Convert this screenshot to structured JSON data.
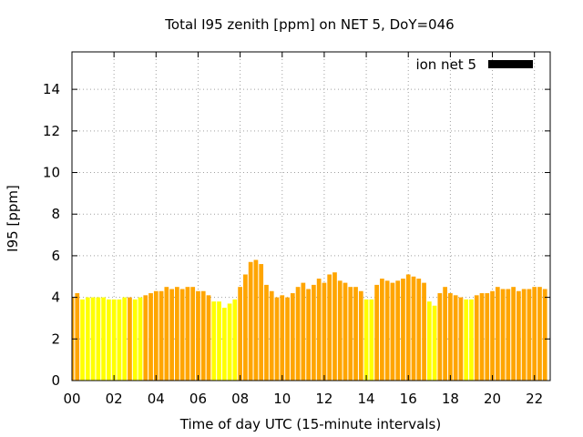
{
  "chart_data": {
    "type": "bar",
    "title": "Total I95 zenith [ppm] on NET 5, DoY=046",
    "xlabel": "Time of day UTC (15-minute intervals)",
    "ylabel": "I95 [ppm]",
    "xlim": [
      0,
      22.75
    ],
    "ylim": [
      0,
      15.8
    ],
    "x_ticks": [
      {
        "value": 0,
        "label": "00"
      },
      {
        "value": 2,
        "label": "02"
      },
      {
        "value": 4,
        "label": "04"
      },
      {
        "value": 6,
        "label": "06"
      },
      {
        "value": 8,
        "label": "08"
      },
      {
        "value": 10,
        "label": "10"
      },
      {
        "value": 12,
        "label": "12"
      },
      {
        "value": 14,
        "label": "14"
      },
      {
        "value": 16,
        "label": "16"
      },
      {
        "value": 18,
        "label": "18"
      },
      {
        "value": 20,
        "label": "20"
      },
      {
        "value": 22,
        "label": "22"
      }
    ],
    "y_ticks": [
      {
        "value": 0,
        "label": "0"
      },
      {
        "value": 2,
        "label": "2"
      },
      {
        "value": 4,
        "label": "4"
      },
      {
        "value": 6,
        "label": "6"
      },
      {
        "value": 8,
        "label": "8"
      },
      {
        "value": 10,
        "label": "10"
      },
      {
        "value": 12,
        "label": "12"
      },
      {
        "value": 14,
        "label": "14"
      }
    ],
    "grid": true,
    "legend": {
      "position": "top-right",
      "entries": [
        {
          "label": "ion net 5",
          "color": "#000000"
        }
      ]
    },
    "colors": {
      "orange": "#ffa500",
      "yellow": "#ffff00"
    },
    "bar_interval_hours": 0.25,
    "values": [
      4.0,
      4.2,
      3.9,
      4.0,
      4.0,
      4.0,
      4.0,
      3.9,
      3.9,
      3.9,
      4.0,
      4.0,
      3.9,
      4.0,
      4.1,
      4.2,
      4.3,
      4.3,
      4.5,
      4.4,
      4.5,
      4.4,
      4.5,
      4.5,
      4.3,
      4.3,
      4.1,
      3.8,
      3.8,
      3.5,
      3.7,
      3.9,
      4.5,
      5.1,
      5.7,
      5.8,
      5.6,
      4.6,
      4.3,
      4.0,
      4.1,
      4.0,
      4.2,
      4.5,
      4.7,
      4.4,
      4.6,
      4.9,
      4.7,
      5.1,
      5.2,
      4.8,
      4.7,
      4.5,
      4.5,
      4.3,
      3.9,
      3.9,
      4.6,
      4.9,
      4.8,
      4.7,
      4.8,
      4.9,
      5.1,
      5.0,
      4.9,
      4.7,
      3.8,
      3.6,
      4.2,
      4.5,
      4.2,
      4.1,
      4.0,
      3.9,
      3.9,
      4.1,
      4.2,
      4.2,
      4.3,
      4.5,
      4.4,
      4.4,
      4.5,
      4.3,
      4.4,
      4.4,
      4.5,
      4.5,
      4.4
    ],
    "bar_colors": [
      "orange",
      "orange",
      "yellow",
      "yellow",
      "yellow",
      "yellow",
      "yellow",
      "yellow",
      "yellow",
      "yellow",
      "yellow",
      "orange",
      "yellow",
      "yellow",
      "orange",
      "orange",
      "orange",
      "orange",
      "orange",
      "orange",
      "orange",
      "orange",
      "orange",
      "orange",
      "orange",
      "orange",
      "orange",
      "yellow",
      "yellow",
      "yellow",
      "yellow",
      "yellow",
      "orange",
      "orange",
      "orange",
      "orange",
      "orange",
      "orange",
      "orange",
      "orange",
      "orange",
      "orange",
      "orange",
      "orange",
      "orange",
      "orange",
      "orange",
      "orange",
      "orange",
      "orange",
      "orange",
      "orange",
      "orange",
      "orange",
      "orange",
      "orange",
      "yellow",
      "yellow",
      "orange",
      "orange",
      "orange",
      "orange",
      "orange",
      "orange",
      "orange",
      "orange",
      "orange",
      "orange",
      "yellow",
      "yellow",
      "orange",
      "orange",
      "orange",
      "orange",
      "orange",
      "yellow",
      "yellow",
      "orange",
      "orange",
      "orange",
      "orange",
      "orange",
      "orange",
      "orange",
      "orange",
      "orange",
      "orange",
      "orange",
      "orange",
      "orange",
      "orange"
    ]
  }
}
